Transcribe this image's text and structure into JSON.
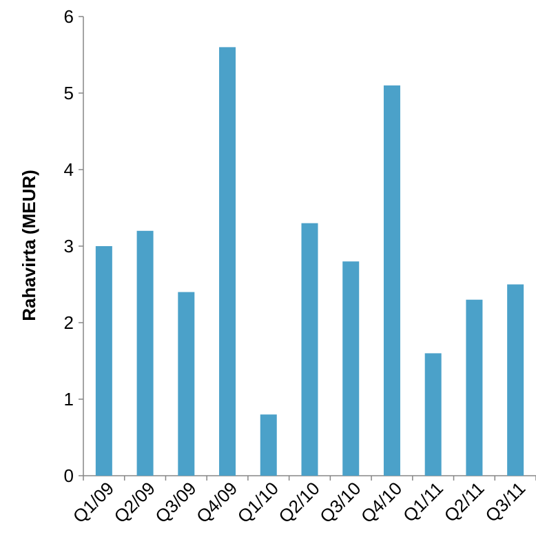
{
  "chart_data": {
    "type": "bar",
    "title": "",
    "xlabel": "",
    "ylabel": "Rahavirta (MEUR)",
    "categories": [
      "Q1/09",
      "Q2/09",
      "Q3/09",
      "Q4/09",
      "Q1/10",
      "Q2/10",
      "Q3/10",
      "Q4/10",
      "Q1/11",
      "Q2/11",
      "Q3/11"
    ],
    "values": [
      3.0,
      3.2,
      2.4,
      5.6,
      0.8,
      3.3,
      2.8,
      5.1,
      1.6,
      2.3,
      2.5
    ],
    "ylim": [
      0,
      6
    ],
    "yticks": [
      "0",
      "1",
      "2",
      "3",
      "4",
      "5",
      "6"
    ],
    "bar_color": "#4BA1C9",
    "grid": false,
    "legend": "none"
  }
}
